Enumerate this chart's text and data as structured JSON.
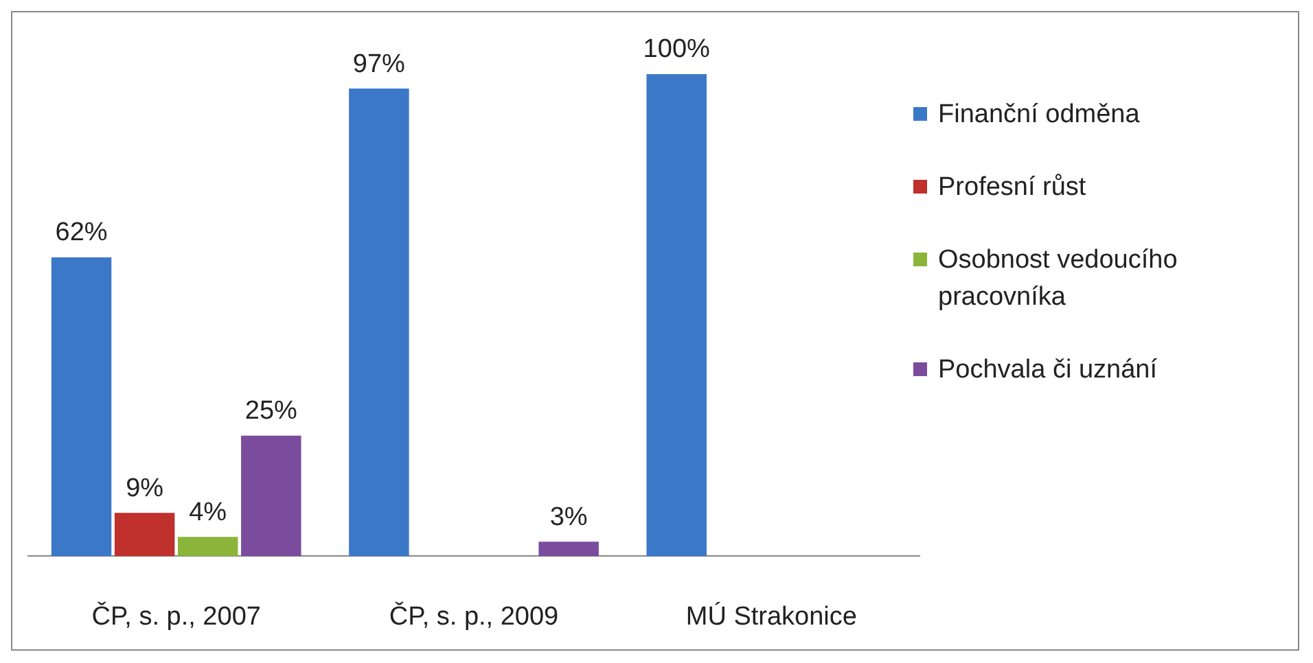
{
  "chart_data": {
    "type": "bar",
    "categories": [
      "ČP, s. p., 2007",
      "ČP, s. p., 2009",
      "MÚ Strakonice"
    ],
    "series": [
      {
        "name": "Finanční odměna",
        "color": "#3b78c8",
        "values": [
          62,
          97,
          100
        ],
        "value_labels": [
          "62%",
          "97%",
          "100%"
        ]
      },
      {
        "name": "Profesní růst",
        "color": "#c0302c",
        "values": [
          9,
          null,
          null
        ],
        "value_labels": [
          "9%",
          null,
          null
        ]
      },
      {
        "name": "Osobnost vedoucího pracovníka",
        "color": "#8bb43a",
        "values": [
          4,
          null,
          null
        ],
        "value_labels": [
          "4%",
          null,
          null
        ]
      },
      {
        "name": "Pochvala či uznání",
        "color": "#7b4b9e",
        "values": [
          25,
          3,
          null
        ],
        "value_labels": [
          "25%",
          "3%",
          null
        ]
      }
    ],
    "legend": "right",
    "grid": false
  }
}
